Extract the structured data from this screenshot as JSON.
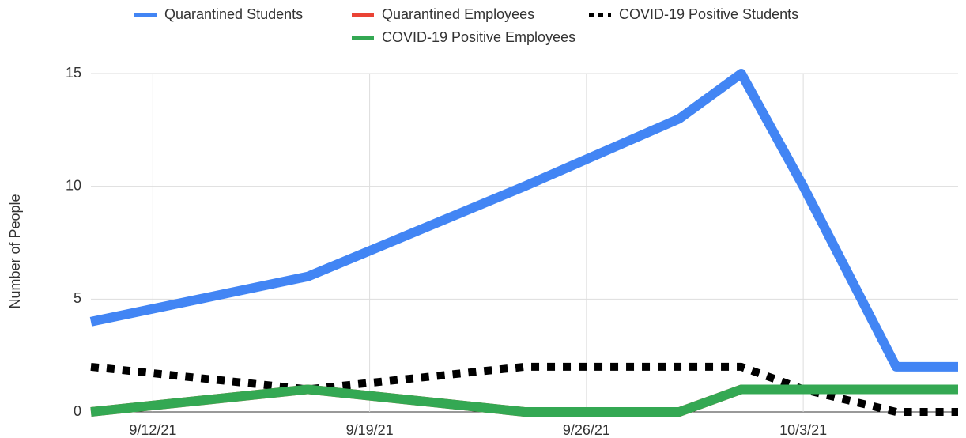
{
  "chart_data": {
    "type": "line",
    "y_label": "Number of People",
    "x": [
      "9/10/21",
      "9/17/21",
      "9/24/21",
      "9/29/21",
      "10/1/21",
      "10/3/21",
      "10/6/21",
      "10/8/21"
    ],
    "xlim": [
      "9/10/21",
      "10/8/21"
    ],
    "xticks": [
      "9/12/21",
      "9/19/21",
      "9/26/21",
      "10/3/21"
    ],
    "ylim": [
      0,
      15
    ],
    "yticks": [
      0,
      5,
      10,
      15
    ],
    "grid": true,
    "legend": "top",
    "series": [
      {
        "name": "Quarantined Students",
        "color": "#4285f4",
        "style": "solid",
        "values": [
          4,
          6,
          10,
          13,
          15,
          10,
          2,
          2
        ]
      },
      {
        "name": "Quarantined Employees",
        "color": "#ea4335",
        "style": "solid",
        "values": [
          0,
          1,
          0,
          0,
          1,
          1,
          1,
          1
        ]
      },
      {
        "name": "COVID-19 Positive Students",
        "color": "#000000",
        "style": "dotted",
        "values": [
          2,
          1,
          2,
          2,
          2,
          1,
          0,
          0
        ]
      },
      {
        "name": "COVID-19 Positive Employees",
        "color": "#34a853",
        "style": "solid",
        "values": [
          0,
          1,
          0,
          0,
          1,
          1,
          1,
          1
        ]
      }
    ]
  }
}
